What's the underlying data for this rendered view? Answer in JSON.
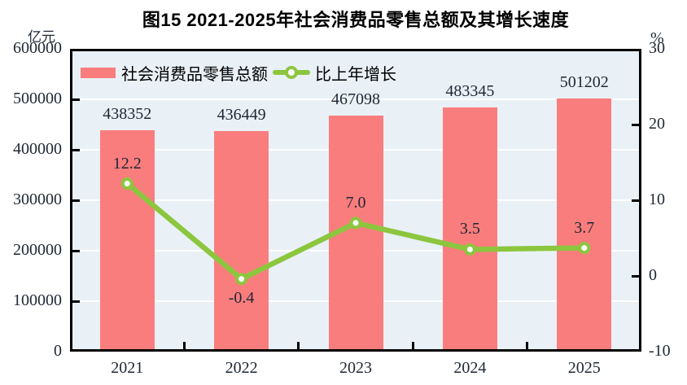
{
  "figure": {
    "title": "图15  2021-2025年社会消费品零售总额及其增长速度",
    "left_axis_unit": "亿元",
    "right_axis_unit": "%"
  },
  "legend": {
    "bar_label": "社会消费品零售总额",
    "line_label": "比上年增长"
  },
  "colors": {
    "bar": "#FA7D7D",
    "line": "#8CC63E",
    "marker_fill": "#FFFFFF",
    "plot_bg": "#E9F1F7",
    "grid": "#FFFFFF",
    "frame": "#000000",
    "text": "#1E2733"
  },
  "labels": {
    "bar_values": [
      "438352",
      "436449",
      "467098",
      "483345",
      "501202"
    ],
    "line_values": [
      "12.2",
      "-0.4",
      "7.0",
      "3.5",
      "3.7"
    ]
  },
  "chart_data": {
    "type": "bar",
    "title": "图15  2021-2025年社会消费品零售总额及其增长速度",
    "categories": [
      "2021",
      "2022",
      "2023",
      "2024",
      "2025"
    ],
    "series": [
      {
        "name": "社会消费品零售总额",
        "type": "bar",
        "axis": "left",
        "unit": "亿元",
        "values": [
          438352,
          436449,
          467098,
          483345,
          501202
        ]
      },
      {
        "name": "比上年增长",
        "type": "line",
        "axis": "right",
        "unit": "%",
        "values": [
          12.2,
          -0.4,
          7.0,
          3.5,
          3.7
        ]
      }
    ],
    "left_axis": {
      "label": "亿元",
      "min": 0,
      "max": 600000,
      "tick_step": 100000,
      "ticks": [
        0,
        100000,
        200000,
        300000,
        400000,
        500000,
        600000
      ]
    },
    "right_axis": {
      "label": "%",
      "min": -10,
      "max": 30,
      "tick_step": 10,
      "ticks": [
        -10,
        0,
        10,
        20,
        30
      ]
    },
    "grid": "horizontal",
    "legend_position": "top-inside",
    "line_label_positions": [
      "above",
      "below",
      "above",
      "above",
      "above"
    ]
  }
}
